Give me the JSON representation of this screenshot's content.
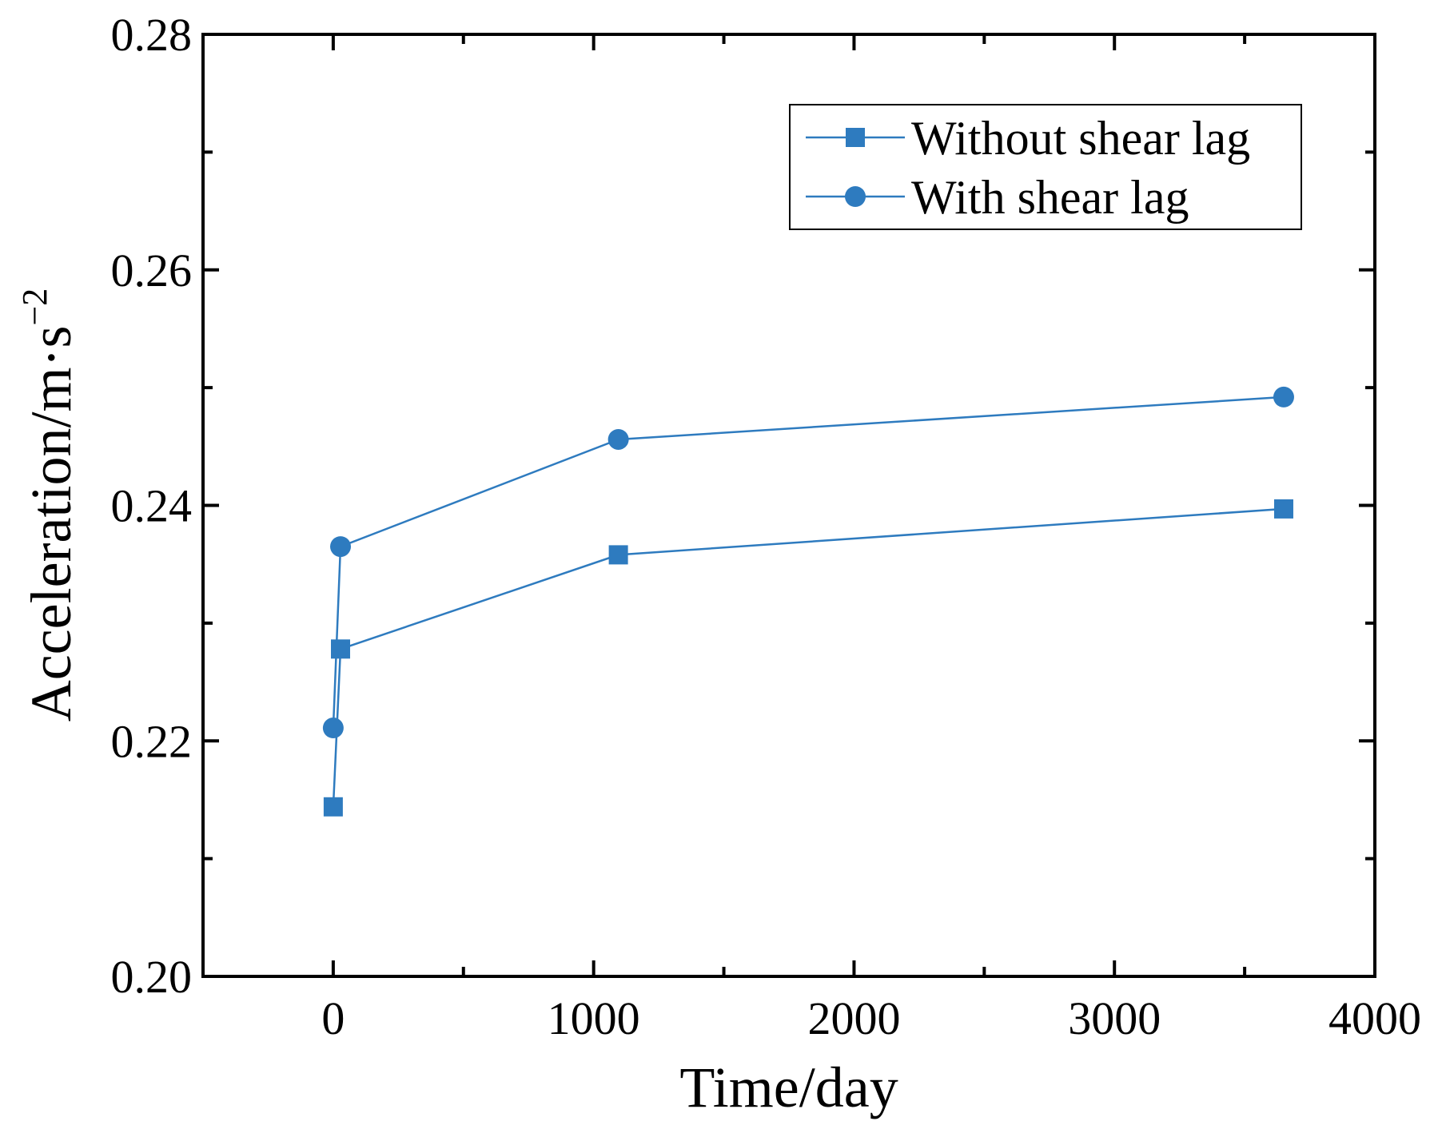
{
  "chart_data": {
    "type": "line",
    "title": "",
    "xlabel": "Time/day",
    "ylabel": "Acceleration/m·s",
    "ylabel_superscript": "−2",
    "xlim": [
      -500,
      4000
    ],
    "ylim": [
      0.2,
      0.28
    ],
    "xticks": [
      0,
      1000,
      2000,
      3000,
      4000
    ],
    "xtick_labels": [
      "0",
      "1000",
      "2000",
      "3000",
      "4000"
    ],
    "xminor": [
      -500,
      500,
      1500,
      2500,
      3500
    ],
    "yticks": [
      0.2,
      0.22,
      0.24,
      0.26,
      0.28
    ],
    "ytick_labels": [
      "0.20",
      "0.22",
      "0.24",
      "0.26",
      "0.28"
    ],
    "yminor": [
      0.21,
      0.23,
      0.25,
      0.27
    ],
    "grid": false,
    "legend_position": "top-right",
    "series": [
      {
        "name": "Without shear lag",
        "marker": "square",
        "color": "#2e7bbf",
        "x": [
          0,
          28,
          1095,
          3650
        ],
        "y": [
          0.2144,
          0.2278,
          0.2358,
          0.2397
        ]
      },
      {
        "name": "With shear lag",
        "marker": "circle",
        "color": "#2e7bbf",
        "x": [
          0,
          28,
          1095,
          3650
        ],
        "y": [
          0.2211,
          0.2365,
          0.2456,
          0.2492
        ]
      }
    ]
  }
}
